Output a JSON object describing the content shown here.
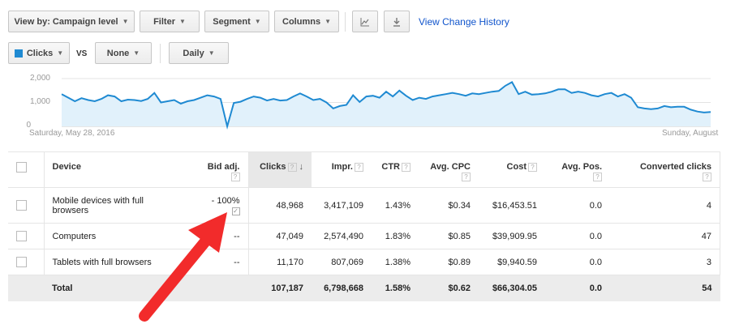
{
  "toolbar": {
    "view_by": "View by: Campaign level",
    "filter": "Filter",
    "segment": "Segment",
    "columns": "Columns",
    "chart_icon": "line-chart-icon",
    "download_icon": "download-icon",
    "change_history": "View Change History"
  },
  "chart_controls": {
    "metric1": "Clicks",
    "metric1_color": "#1f8ad2",
    "vs": "VS",
    "metric2": "None",
    "period": "Daily"
  },
  "chart_data": {
    "type": "area",
    "title": "",
    "xlabel": "",
    "ylabel": "",
    "ylim": [
      0,
      2000
    ],
    "yticks": [
      "2,000",
      "1,000",
      "0"
    ],
    "x_start": "Saturday, May 28, 2016",
    "x_end": "Sunday, August",
    "series": [
      {
        "values": [
          1350,
          1200,
          1050,
          1180,
          1100,
          1050,
          1150,
          1300,
          1250,
          1050,
          1120,
          1100,
          1060,
          1150,
          1400,
          1000,
          1050,
          1100,
          950,
          1050,
          1100,
          1200,
          1300,
          1250,
          1150,
          0,
          980,
          1030,
          1150,
          1250,
          1200,
          1080,
          1150,
          1080,
          1100,
          1250,
          1380,
          1250,
          1100,
          1150,
          1000,
          750,
          850,
          900,
          1300,
          1020,
          1250,
          1280,
          1200,
          1450,
          1250,
          1500,
          1280,
          1100,
          1200,
          1150,
          1250,
          1300,
          1350,
          1400,
          1350,
          1280,
          1380,
          1350,
          1400,
          1450,
          1480,
          1700,
          1850,
          1350,
          1450,
          1330,
          1350,
          1380,
          1450,
          1550,
          1550,
          1400,
          1450,
          1400,
          1300,
          1250,
          1350,
          1400,
          1250,
          1350,
          1200,
          800,
          750,
          720,
          750,
          850,
          800,
          820,
          820,
          700,
          620,
          580,
          600
        ]
      }
    ]
  },
  "table": {
    "headers": {
      "device": "Device",
      "bid_adj": "Bid adj.",
      "clicks": "Clicks",
      "impr": "Impr.",
      "ctr": "CTR",
      "avg_cpc": "Avg. CPC",
      "cost": "Cost",
      "avg_pos": "Avg. Pos.",
      "converted": "Converted clicks",
      "help": "?",
      "sort": "↓"
    },
    "rows": [
      {
        "device1": "Mobile devices with full",
        "device2": "browsers",
        "bid_adj": "- 100%",
        "clicks": "48,968",
        "impr": "3,417,109",
        "ctr": "1.43%",
        "avg_cpc": "$0.34",
        "cost": "$16,453.51",
        "avg_pos": "0.0",
        "converted": "4"
      },
      {
        "device1": "Computers",
        "device2": "",
        "bid_adj": "--",
        "clicks": "47,049",
        "impr": "2,574,490",
        "ctr": "1.83%",
        "avg_cpc": "$0.85",
        "cost": "$39,909.95",
        "avg_pos": "0.0",
        "converted": "47"
      },
      {
        "device1": "Tablets with full browsers",
        "device2": "",
        "bid_adj": "--",
        "clicks": "11,170",
        "impr": "807,069",
        "ctr": "1.38%",
        "avg_cpc": "$0.89",
        "cost": "$9,940.59",
        "avg_pos": "0.0",
        "converted": "3"
      }
    ],
    "total": {
      "label": "Total",
      "clicks": "107,187",
      "impr": "6,798,668",
      "ctr": "1.58%",
      "avg_cpc": "$0.62",
      "cost": "$66,304.05",
      "avg_pos": "0.0",
      "converted": "54"
    }
  },
  "annotation": {
    "arrow_color": "#f22b2b"
  }
}
